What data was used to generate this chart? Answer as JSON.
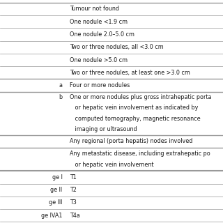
{
  "background": "#ffffff",
  "text_color": "#1a1a1a",
  "line_color": "#999999",
  "font_size": 5.8,
  "col_split": 0.295,
  "rows": [
    {
      "col1": "",
      "col2_lines": [
        "Tumour not found"
      ],
      "divider_weight": 1.0
    },
    {
      "col1": "",
      "col2_lines": [
        "One nodule <1.9 cm"
      ],
      "divider_weight": 0.5
    },
    {
      "col1": "",
      "col2_lines": [
        "One nodule 2.0–5.0 cm"
      ],
      "divider_weight": 0.5
    },
    {
      "col1": "",
      "col2_lines": [
        "Two or three nodules, all <3.0 cm"
      ],
      "divider_weight": 0.5
    },
    {
      "col1": "",
      "col2_lines": [
        "One nodule >5.0 cm"
      ],
      "divider_weight": 0.5
    },
    {
      "col1": "",
      "col2_lines": [
        "Two or three nodules, at least one >3.0 cm"
      ],
      "divider_weight": 0.5
    },
    {
      "col1": "a",
      "col2_lines": [
        "Four or more nodules"
      ],
      "divider_weight": 1.0
    },
    {
      "col1": "b",
      "col2_lines": [
        "One or more nodules plus gross intrahepatic porta",
        "   or hepatic vein involvement as indicated by",
        "   computed tomography, magnetic resonance",
        "   imaging or ultrasound"
      ],
      "divider_weight": 1.0
    },
    {
      "col1": "",
      "col2_lines": [
        "Any regional (porta hepatis) nodes involved"
      ],
      "divider_weight": 1.0
    },
    {
      "col1": "",
      "col2_lines": [
        "Any metastatic disease, including extrahepatic po",
        "   or hepatic vein involvement"
      ],
      "divider_weight": 1.0
    },
    {
      "col1": "ge I",
      "col2_lines": [
        "T1"
      ],
      "divider_weight": 1.5
    },
    {
      "col1": "ge II",
      "col2_lines": [
        "T2"
      ],
      "divider_weight": 0.5
    },
    {
      "col1": "ge III",
      "col2_lines": [
        "T3"
      ],
      "divider_weight": 0.5
    },
    {
      "col1": "ge IVA1",
      "col2_lines": [
        "T4a"
      ],
      "divider_weight": 0.5
    }
  ]
}
